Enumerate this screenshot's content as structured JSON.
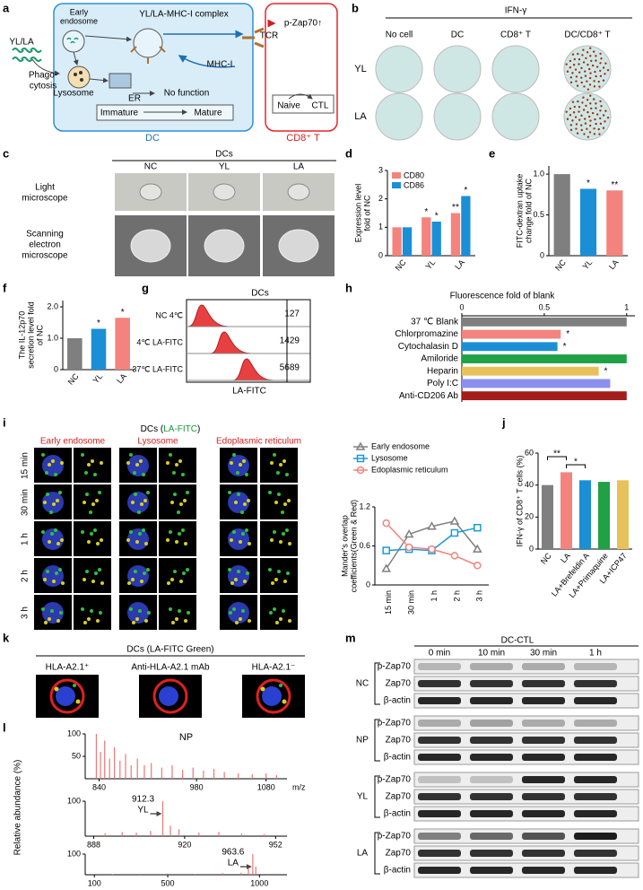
{
  "panels": {
    "letters": [
      "a",
      "b",
      "c",
      "d",
      "e",
      "f",
      "g",
      "h",
      "i",
      "j",
      "k",
      "l",
      "m"
    ],
    "a": {
      "yl_la": "YL/LA",
      "phago": [
        "Phago-",
        "cytosis"
      ],
      "early": [
        "Early",
        "endosome"
      ],
      "complex": "YL/LA-MHC-I complex",
      "tcr": "TCR",
      "pzap": "p-Zap70↑",
      "mhc": "MHC-I",
      "lysosome": "Lysosome",
      "er": "ER",
      "nofunc": "No function",
      "immature": "Immature",
      "mature": "Mature",
      "naive": "Naive",
      "ctl": "CTL",
      "dc": "DC",
      "cd8": "CD8⁺ T"
    },
    "b": {
      "title": "IFN-γ",
      "columns": [
        "No cell",
        "DC",
        "CD8⁺ T",
        "DC/CD8⁺ T"
      ],
      "rows": [
        "YL",
        "LA"
      ]
    },
    "c": {
      "title": "DCs",
      "columns": [
        "NC",
        "YL",
        "LA"
      ],
      "rows": [
        [
          "Light",
          "microscope"
        ],
        [
          "Scanning",
          "electron",
          "microscope"
        ]
      ]
    },
    "g": {
      "title": "DCs",
      "rows": [
        "NC 4℃",
        "4℃ LA-FITC",
        "37℃ LA-FITC"
      ],
      "counts": [
        127,
        1429,
        5689
      ],
      "xlabel": "LA-FITC"
    },
    "i": {
      "title": [
        "DCs (",
        "LA-FITC",
        ")"
      ],
      "columns": [
        "Early endosome",
        "Lysosome",
        "Edoplasmic reticulum"
      ],
      "rows": [
        "15 min",
        "30 min",
        "1 h",
        "2 h",
        "3 h"
      ]
    },
    "k": {
      "title": "DCs (LA-FITC Green)",
      "columns": [
        "HLA-A2.1⁺",
        "Anti-HLA-A2.1 mAb",
        "HLA-A2.1⁻"
      ]
    },
    "l": {
      "ylabel": "Relative abundance (%)"
    },
    "m": {
      "title": "DC-CTL",
      "columns": [
        "0 min",
        "10 min",
        "30 min",
        "1 h"
      ],
      "groups": [
        "NC",
        "NP",
        "YL",
        "LA"
      ],
      "rows": [
        "p-Zap70",
        "Zap70",
        "β-actin"
      ]
    }
  },
  "chart_data": [
    {
      "type": "bar",
      "ylabel": [
        "Expression level",
        "fold of NC"
      ],
      "categories": [
        "NC",
        "YL",
        "LA"
      ],
      "series": [
        {
          "name": "CD80",
          "color": "#f4837d",
          "values": [
            1,
            1.35,
            1.5
          ],
          "stars": [
            null,
            "*",
            "**"
          ]
        },
        {
          "name": "CD86",
          "color": "#1b8fd6",
          "values": [
            1,
            1.2,
            2.1
          ],
          "stars": [
            null,
            "*",
            "*"
          ]
        }
      ],
      "ylim": [
        0,
        3
      ],
      "yticks": [
        0,
        1,
        2,
        3
      ],
      "legend": "upper left"
    },
    {
      "type": "bar",
      "ylabel": [
        "FITC-dextran uptake",
        "change fold of NC"
      ],
      "categories": [
        "NC",
        "YL",
        "LA"
      ],
      "values": [
        1,
        0.82,
        0.8
      ],
      "colors": [
        "#7f7f7f",
        "#1b8fd6",
        "#f4837d"
      ],
      "stars": [
        null,
        "*",
        "**"
      ],
      "ylim": [
        0,
        1.1
      ],
      "yticks": [
        0,
        0.5,
        {
          "value": 1,
          "label": "1.0"
        }
      ]
    },
    {
      "type": "bar",
      "ylabel": [
        "The IL-12p70",
        "secretion level fold",
        "of NC"
      ],
      "categories": [
        "NC",
        "YL",
        "LA"
      ],
      "values": [
        1,
        1.3,
        1.65
      ],
      "colors": [
        "#7f7f7f",
        "#1b8fd6",
        "#f4837d"
      ],
      "stars": [
        null,
        "*",
        "*"
      ],
      "ylim": [
        0,
        2.2
      ],
      "yticks": [
        0,
        {
          "value": 1,
          "label": "1.0"
        },
        {
          "value": 2,
          "label": "2.0"
        }
      ]
    },
    {
      "type": "hbar",
      "title": "Fluorescence fold of blank",
      "categories": [
        "37 ℃ Blank",
        "Chlorpromazine",
        "Cytochalasin D",
        "Amiloride",
        "Heparin",
        "Poly I:C",
        "Anti-CD206 Ab"
      ],
      "values": [
        1,
        0.6,
        0.58,
        1,
        0.83,
        0.9,
        1
      ],
      "colors": [
        "#7f7f7f",
        "#f4837d",
        "#1b8fd6",
        "#21a045",
        "#e8c15a",
        "#8d8ff0",
        "#a51c1c"
      ],
      "stars": [
        null,
        "*",
        "*",
        null,
        "*",
        null,
        null
      ],
      "xlim": [
        0,
        1.05
      ],
      "xticks": [
        0,
        0.5,
        1
      ]
    },
    {
      "type": "line",
      "x": [
        "15 min",
        "30 min",
        "1 h",
        "2 h",
        "3 h"
      ],
      "ylabel": [
        "Mander's overlap",
        "coefficients(Green & Red)"
      ],
      "series": [
        {
          "name": "Early endosome",
          "color": "#7f7f7f",
          "marker": "triangle",
          "values": [
            0.25,
            0.78,
            0.9,
            0.98,
            0.55
          ]
        },
        {
          "name": "Lysosome",
          "color": "#1b9ad6",
          "marker": "square",
          "values": [
            0.53,
            0.55,
            0.53,
            0.8,
            0.88
          ]
        },
        {
          "name": "Edoplasmic reticulum",
          "color": "#f4837d",
          "marker": "circle",
          "values": [
            0.95,
            0.58,
            0.55,
            0.45,
            0.3
          ]
        }
      ],
      "ylim": [
        0,
        1.2
      ],
      "yticks": [
        0,
        0.6,
        1.2
      ]
    },
    {
      "type": "bar",
      "ylabel": [
        "IFN-γ of CD8⁺ T cells (%)"
      ],
      "categories": [
        "NC",
        "LA",
        "LA+Brefeldin A",
        "LA+Primaquine",
        "LA+ICP47"
      ],
      "values": [
        40,
        48,
        43,
        42,
        43
      ],
      "colors": [
        "#7f7f7f",
        "#f4837d",
        "#1b8fd6",
        "#21a045",
        "#e8c15a"
      ],
      "significance": [
        "**",
        "*"
      ],
      "ylim": [
        0,
        60
      ],
      "yticks": [
        0,
        20,
        40,
        60
      ]
    },
    {
      "type": "spectrum",
      "title": "NP",
      "xlabel": "m/z",
      "color": "#e87878",
      "xlim": [
        820,
        1110
      ],
      "xticks": [
        840,
        980,
        1080
      ],
      "ylim": [
        0,
        100
      ],
      "yticks": [
        50,
        100
      ],
      "x": [
        836,
        842,
        848,
        855,
        862,
        870,
        878,
        886,
        895,
        905,
        915,
        930,
        945,
        960,
        975,
        990,
        1005,
        1020,
        1040,
        1060,
        1080,
        1095
      ],
      "values": [
        100,
        60,
        85,
        45,
        70,
        40,
        55,
        30,
        45,
        30,
        35,
        25,
        30,
        20,
        25,
        18,
        22,
        15,
        12,
        10,
        12,
        8
      ]
    },
    {
      "type": "spectrum",
      "annotation": [
        "912.3",
        "YL"
      ],
      "color": "#e87878",
      "xlim": [
        885,
        956
      ],
      "xticks": [
        888,
        920,
        952
      ],
      "ylim": [
        0,
        100
      ],
      "yticks": [
        100
      ],
      "x": [
        892,
        898,
        903,
        908,
        912.3,
        915,
        918,
        925,
        932,
        940,
        948
      ],
      "values": [
        8,
        12,
        10,
        15,
        100,
        30,
        20,
        10,
        12,
        8,
        6
      ]
    },
    {
      "type": "spectrum",
      "annotation": [
        "963.6",
        "LA"
      ],
      "color": "#e87878",
      "xlim": [
        50,
        1150
      ],
      "xticks": [
        100,
        500,
        1000
      ],
      "ylim": [
        0,
        100
      ],
      "yticks": [
        100
      ],
      "x": [
        200,
        350,
        500,
        650,
        800,
        900,
        940,
        963.6,
        980,
        1050
      ],
      "values": [
        3,
        5,
        6,
        4,
        8,
        10,
        30,
        100,
        40,
        5
      ]
    }
  ]
}
